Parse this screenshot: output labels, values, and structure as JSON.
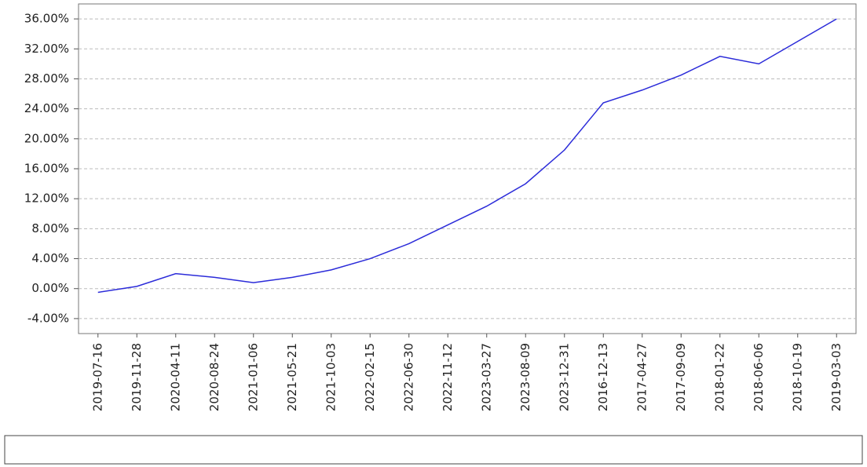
{
  "chart_data": {
    "type": "line",
    "categories": [
      "2019-07-16",
      "2019-11-28",
      "2020-04-11",
      "2020-08-24",
      "2021-01-06",
      "2021-05-21",
      "2021-10-03",
      "2022-02-15",
      "2022-06-30",
      "2022-11-12",
      "2023-03-27",
      "2023-08-09",
      "2023-12-31",
      "2016-12-13",
      "2017-04-27",
      "2017-09-09",
      "2018-01-22",
      "2018-06-06",
      "2018-10-19",
      "2019-03-03"
    ],
    "series": [
      {
        "color": "#2b2bd9",
        "values": [
          -0.5,
          0.3,
          2,
          1.5,
          0.8,
          1.5,
          2.5,
          4,
          6,
          8.5,
          11,
          14,
          18.5,
          24.8,
          26.5,
          28.5,
          31,
          30,
          33,
          36
        ]
      }
    ],
    "ylim": [
      -6,
      38
    ],
    "yticks": [
      {
        "value": -4,
        "label": "-4.00%"
      },
      {
        "value": 0,
        "label": "0.00%"
      },
      {
        "value": 4,
        "label": "4.00%"
      },
      {
        "value": 8,
        "label": "8.00%"
      },
      {
        "value": 12,
        "label": "12.00%"
      },
      {
        "value": 16,
        "label": "16.00%"
      },
      {
        "value": 20,
        "label": "20.00%"
      },
      {
        "value": 24,
        "label": "24.00%"
      },
      {
        "value": 28,
        "label": "28.00%"
      },
      {
        "value": 32,
        "label": "32.00%"
      },
      {
        "value": 36,
        "label": "36.00%"
      }
    ],
    "grid": true
  }
}
